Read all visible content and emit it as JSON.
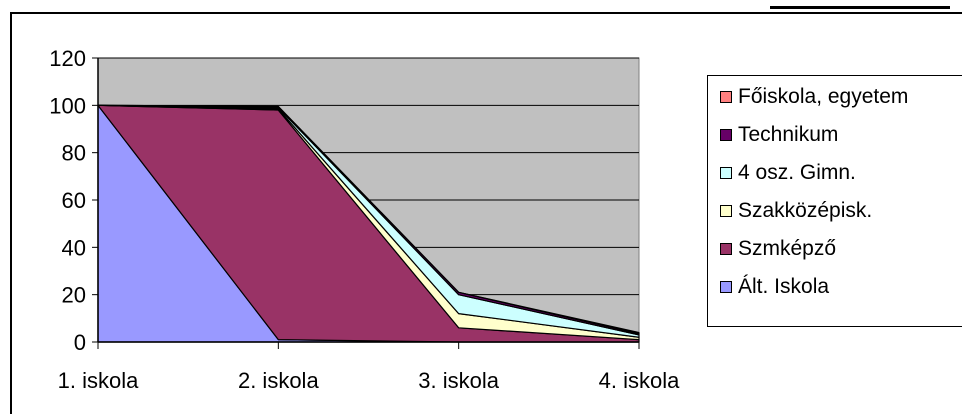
{
  "chart_data": {
    "type": "area",
    "stacked": true,
    "categories": [
      "1. iskola",
      "2. iskola",
      "3. iskola",
      "4. iskola"
    ],
    "series": [
      {
        "name": "Ált. Iskola",
        "color": "#9999FF",
        "values": [
          100,
          1,
          0,
          0
        ]
      },
      {
        "name": "Szmképző",
        "color": "#993366",
        "values": [
          0,
          97,
          6,
          1
        ]
      },
      {
        "name": "Szakközépisk.",
        "color": "#FFFFCC",
        "values": [
          0,
          0.5,
          6,
          1
        ]
      },
      {
        "name": "4 osz. Gimn.",
        "color": "#CCFFFF",
        "values": [
          0,
          0.5,
          8,
          1
        ]
      },
      {
        "name": "Technikum",
        "color": "#660066",
        "values": [
          0,
          0.5,
          1,
          0.5
        ]
      },
      {
        "name": "Főiskola, egyetem",
        "color": "#FF8080",
        "values": [
          0,
          0,
          0,
          0.5
        ]
      }
    ],
    "yticks": [
      "0",
      "20",
      "40",
      "60",
      "80",
      "100",
      "120"
    ],
    "ylim": [
      0,
      120
    ],
    "plot_background": "#C0C0C0",
    "grid": true,
    "legend_position": "right",
    "legend_order": [
      "Főiskola, egyetem",
      "Technikum",
      "4 osz. Gimn.",
      "Szakközépisk.",
      "Szmképző",
      "Ált. Iskola"
    ]
  }
}
